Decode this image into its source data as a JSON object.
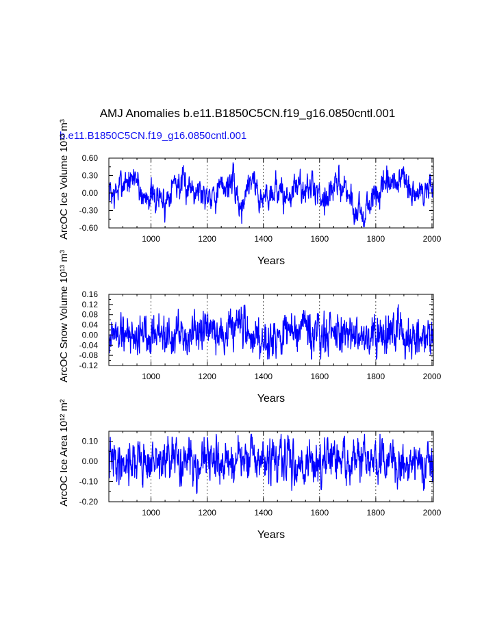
{
  "page": {
    "title": "AMJ Anomalies b.e11.B1850C5CN.f19_g16.0850cntl.001",
    "subtitle": "b.e11.B1850C5CN.f19_g16.0850cntl.001"
  },
  "colors": {
    "series": "#0000ff",
    "axis": "#000000",
    "subtitle": "#1010f0"
  },
  "chart_data": [
    {
      "type": "line",
      "ylabel": "ArcOC Ice Volume 10¹³ m³",
      "xlabel": "Years",
      "xlim": [
        850,
        2005
      ],
      "ylim": [
        -0.6,
        0.6
      ],
      "xticks": [
        1000,
        1200,
        1400,
        1600,
        1800,
        2000
      ],
      "yticks": [
        -0.6,
        -0.3,
        0.0,
        0.3,
        0.6
      ],
      "ytick_labels": [
        "-0.60",
        "-0.30",
        "0.00",
        "0.30",
        "0.60"
      ],
      "grid_x": [
        1000,
        1200,
        1400,
        1600,
        1800,
        2000
      ],
      "series": [
        {
          "name": "ice-volume",
          "keyframes": [
            [
              850,
              0.05
            ],
            [
              870,
              -0.05
            ],
            [
              890,
              0.12
            ],
            [
              910,
              0.25
            ],
            [
              930,
              0.15
            ],
            [
              945,
              0.35
            ],
            [
              960,
              0.05
            ],
            [
              975,
              -0.1
            ],
            [
              990,
              0.02
            ],
            [
              1010,
              -0.12
            ],
            [
              1030,
              -0.05
            ],
            [
              1050,
              -0.2
            ],
            [
              1070,
              0.15
            ],
            [
              1090,
              0.2
            ],
            [
              1110,
              0.1
            ],
            [
              1130,
              0.12
            ],
            [
              1150,
              0.15
            ],
            [
              1170,
              0.05
            ],
            [
              1190,
              -0.05
            ],
            [
              1210,
              0.05
            ],
            [
              1230,
              -0.02
            ],
            [
              1250,
              0.08
            ],
            [
              1270,
              0.15
            ],
            [
              1290,
              0.2
            ],
            [
              1310,
              -0.1
            ],
            [
              1320,
              -0.3
            ],
            [
              1340,
              0.1
            ],
            [
              1360,
              0.3
            ],
            [
              1375,
              0.1
            ],
            [
              1390,
              -0.15
            ],
            [
              1410,
              -0.05
            ],
            [
              1430,
              0.05
            ],
            [
              1450,
              0.1
            ],
            [
              1470,
              -0.1
            ],
            [
              1490,
              -0.05
            ],
            [
              1510,
              0.08
            ],
            [
              1530,
              0.15
            ],
            [
              1550,
              0.02
            ],
            [
              1570,
              0.1
            ],
            [
              1590,
              0.05
            ],
            [
              1610,
              -0.05
            ],
            [
              1630,
              -0.02
            ],
            [
              1650,
              0.08
            ],
            [
              1670,
              0.15
            ],
            [
              1690,
              0.1
            ],
            [
              1710,
              -0.08
            ],
            [
              1725,
              -0.35
            ],
            [
              1740,
              -0.2
            ],
            [
              1760,
              -0.45
            ],
            [
              1780,
              -0.15
            ],
            [
              1800,
              -0.05
            ],
            [
              1820,
              0.05
            ],
            [
              1840,
              0.1
            ],
            [
              1860,
              0.12
            ],
            [
              1880,
              0.2
            ],
            [
              1895,
              0.35
            ],
            [
              1910,
              0.05
            ],
            [
              1930,
              -0.05
            ],
            [
              1950,
              0.05
            ],
            [
              1970,
              -0.05
            ],
            [
              1990,
              0.15
            ],
            [
              2005,
              0.1
            ]
          ],
          "noise": 0.11,
          "min": -0.58,
          "max": 0.52,
          "seed": 7
        }
      ]
    },
    {
      "type": "line",
      "ylabel": "ArcOC Snow Volume 10¹³ m³",
      "xlabel": "Years",
      "xlim": [
        850,
        2005
      ],
      "ylim": [
        -0.12,
        0.16
      ],
      "xticks": [
        1000,
        1200,
        1400,
        1600,
        1800,
        2000
      ],
      "yticks": [
        -0.12,
        -0.08,
        -0.04,
        0.0,
        0.04,
        0.08,
        0.12,
        0.16
      ],
      "ytick_labels": [
        "-0.12",
        "-0.08",
        "-0.04",
        "0.00",
        "0.04",
        "0.08",
        "0.12",
        "0.16"
      ],
      "grid_x": [
        1000,
        1200,
        1400,
        1600,
        1800,
        2000
      ],
      "series": [
        {
          "name": "snow-volume",
          "keyframes": [
            [
              850,
              0.0
            ],
            [
              900,
              0.01
            ],
            [
              950,
              0.0
            ],
            [
              1000,
              0.02
            ],
            [
              1050,
              0.0
            ],
            [
              1100,
              -0.01
            ],
            [
              1150,
              0.01
            ],
            [
              1200,
              0.0
            ],
            [
              1250,
              0.0
            ],
            [
              1300,
              0.02
            ],
            [
              1350,
              0.0
            ],
            [
              1400,
              0.0
            ],
            [
              1450,
              0.0
            ],
            [
              1500,
              0.01
            ],
            [
              1550,
              0.0
            ],
            [
              1600,
              0.0
            ],
            [
              1650,
              -0.01
            ],
            [
              1700,
              0.01
            ],
            [
              1750,
              0.0
            ],
            [
              1800,
              0.0
            ],
            [
              1850,
              0.0
            ],
            [
              1900,
              0.01
            ],
            [
              1950,
              0.0
            ],
            [
              2005,
              0.0
            ]
          ],
          "noise": 0.035,
          "min": -0.095,
          "max": 0.135,
          "seed": 19
        }
      ]
    },
    {
      "type": "line",
      "ylabel": "ArcOC Ice Area 10¹² m²",
      "xlabel": "Years",
      "xlim": [
        850,
        2005
      ],
      "ylim": [
        -0.2,
        0.15
      ],
      "xticks": [
        1000,
        1200,
        1400,
        1600,
        1800,
        2000
      ],
      "yticks": [
        -0.2,
        -0.1,
        0.0,
        0.1
      ],
      "ytick_labels": [
        "-0.20",
        "-0.10",
        "0.00",
        "0.10"
      ],
      "grid_x": [
        1000,
        1200,
        1400,
        1600,
        1800,
        2000
      ],
      "series": [
        {
          "name": "ice-area",
          "keyframes": [
            [
              850,
              0.0
            ],
            [
              900,
              0.0
            ],
            [
              950,
              0.01
            ],
            [
              1000,
              -0.01
            ],
            [
              1050,
              0.0
            ],
            [
              1100,
              0.0
            ],
            [
              1150,
              0.0
            ],
            [
              1200,
              0.0
            ],
            [
              1250,
              0.0
            ],
            [
              1300,
              0.0
            ],
            [
              1350,
              0.01
            ],
            [
              1400,
              0.0
            ],
            [
              1450,
              0.0
            ],
            [
              1500,
              0.0
            ],
            [
              1550,
              -0.01
            ],
            [
              1600,
              0.0
            ],
            [
              1650,
              0.0
            ],
            [
              1700,
              0.0
            ],
            [
              1750,
              0.0
            ],
            [
              1800,
              0.0
            ],
            [
              1850,
              0.0
            ],
            [
              1900,
              0.0
            ],
            [
              1950,
              0.0
            ],
            [
              2005,
              0.0
            ]
          ],
          "noise": 0.045,
          "min": -0.16,
          "max": 0.135,
          "seed": 41
        }
      ]
    }
  ]
}
